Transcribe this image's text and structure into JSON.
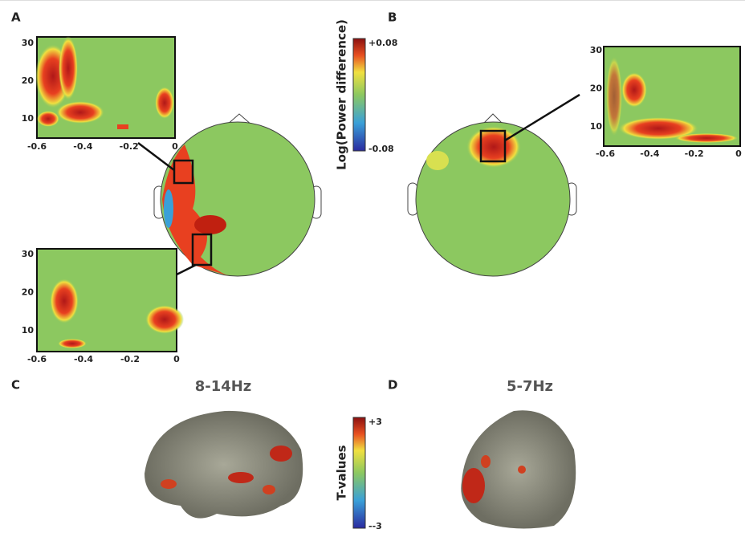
{
  "panels": [
    {
      "label": "A",
      "insets": [
        {
          "yticks": [
            "30",
            "20",
            "10"
          ],
          "xticks": [
            "-0.6",
            "-0.4",
            "-0.2",
            "0"
          ]
        },
        {
          "yticks": [
            "30",
            "20",
            "10"
          ],
          "xticks": [
            "-0.6",
            "-0.4",
            "-0.2",
            "0"
          ]
        }
      ]
    },
    {
      "label": "B",
      "insets": [
        {
          "yticks": [
            "30",
            "20",
            "10"
          ],
          "xticks": [
            "-0.6",
            "-0.4",
            "-0.2",
            "0"
          ]
        }
      ]
    },
    {
      "label": "C",
      "title": "8-14Hz"
    },
    {
      "label": "D",
      "title": "5-7Hz"
    }
  ],
  "colorbars": [
    {
      "label": "Log(Power difference)",
      "max": "+0.08",
      "min": "-0.08"
    },
    {
      "label": "T-values",
      "max": "+3",
      "min": "--3"
    }
  ]
}
